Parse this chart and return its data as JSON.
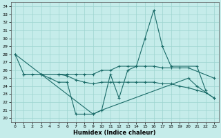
{
  "xlabel": "Humidex (Indice chaleur)",
  "bg_color": "#c5ecea",
  "grid_color": "#9dd4d0",
  "line_color": "#1a6b68",
  "xlim": [
    -0.5,
    23.5
  ],
  "ylim": [
    19.5,
    34.5
  ],
  "xticks": [
    0,
    1,
    2,
    3,
    4,
    5,
    6,
    7,
    8,
    9,
    10,
    11,
    12,
    13,
    14,
    15,
    16,
    17,
    18,
    19,
    20,
    21,
    22,
    23
  ],
  "yticks": [
    20,
    21,
    22,
    23,
    24,
    25,
    26,
    27,
    28,
    29,
    30,
    31,
    32,
    33,
    34
  ],
  "line1_x": [
    0,
    1,
    2,
    3,
    4,
    5,
    6,
    7,
    8,
    9,
    10,
    11,
    12,
    13,
    14,
    15,
    16,
    17,
    18,
    21,
    22
  ],
  "line1_y": [
    28,
    25.5,
    25.5,
    25.5,
    25.0,
    24.5,
    24.5,
    20.5,
    20.5,
    20.5,
    21.0,
    25.5,
    22.5,
    26.0,
    26.5,
    30.0,
    33.5,
    29.0,
    26.5,
    26.5,
    23.5
  ],
  "line2_x": [
    1,
    3,
    5,
    6,
    7,
    8,
    9,
    10,
    11,
    12,
    13,
    14,
    15,
    16,
    17,
    18,
    19,
    20,
    23
  ],
  "line2_y": [
    25.5,
    25.5,
    25.5,
    25.5,
    25.5,
    25.5,
    25.5,
    26.0,
    26.0,
    26.5,
    26.5,
    26.5,
    26.5,
    26.5,
    26.3,
    26.3,
    26.3,
    26.3,
    25.0
  ],
  "line3_x": [
    1,
    3,
    5,
    6,
    7,
    8,
    9,
    10,
    11,
    12,
    13,
    14,
    15,
    16,
    17,
    18,
    19,
    20,
    21,
    22,
    23
  ],
  "line3_y": [
    25.5,
    25.5,
    25.5,
    25.3,
    24.8,
    24.5,
    24.3,
    24.5,
    24.5,
    24.5,
    24.5,
    24.5,
    24.5,
    24.5,
    24.3,
    24.3,
    24.0,
    23.8,
    23.5,
    23.2,
    22.5
  ],
  "line4_x": [
    0,
    9,
    10,
    20,
    21,
    23
  ],
  "line4_y": [
    28,
    20.5,
    21.0,
    25.0,
    24.0,
    22.5
  ]
}
